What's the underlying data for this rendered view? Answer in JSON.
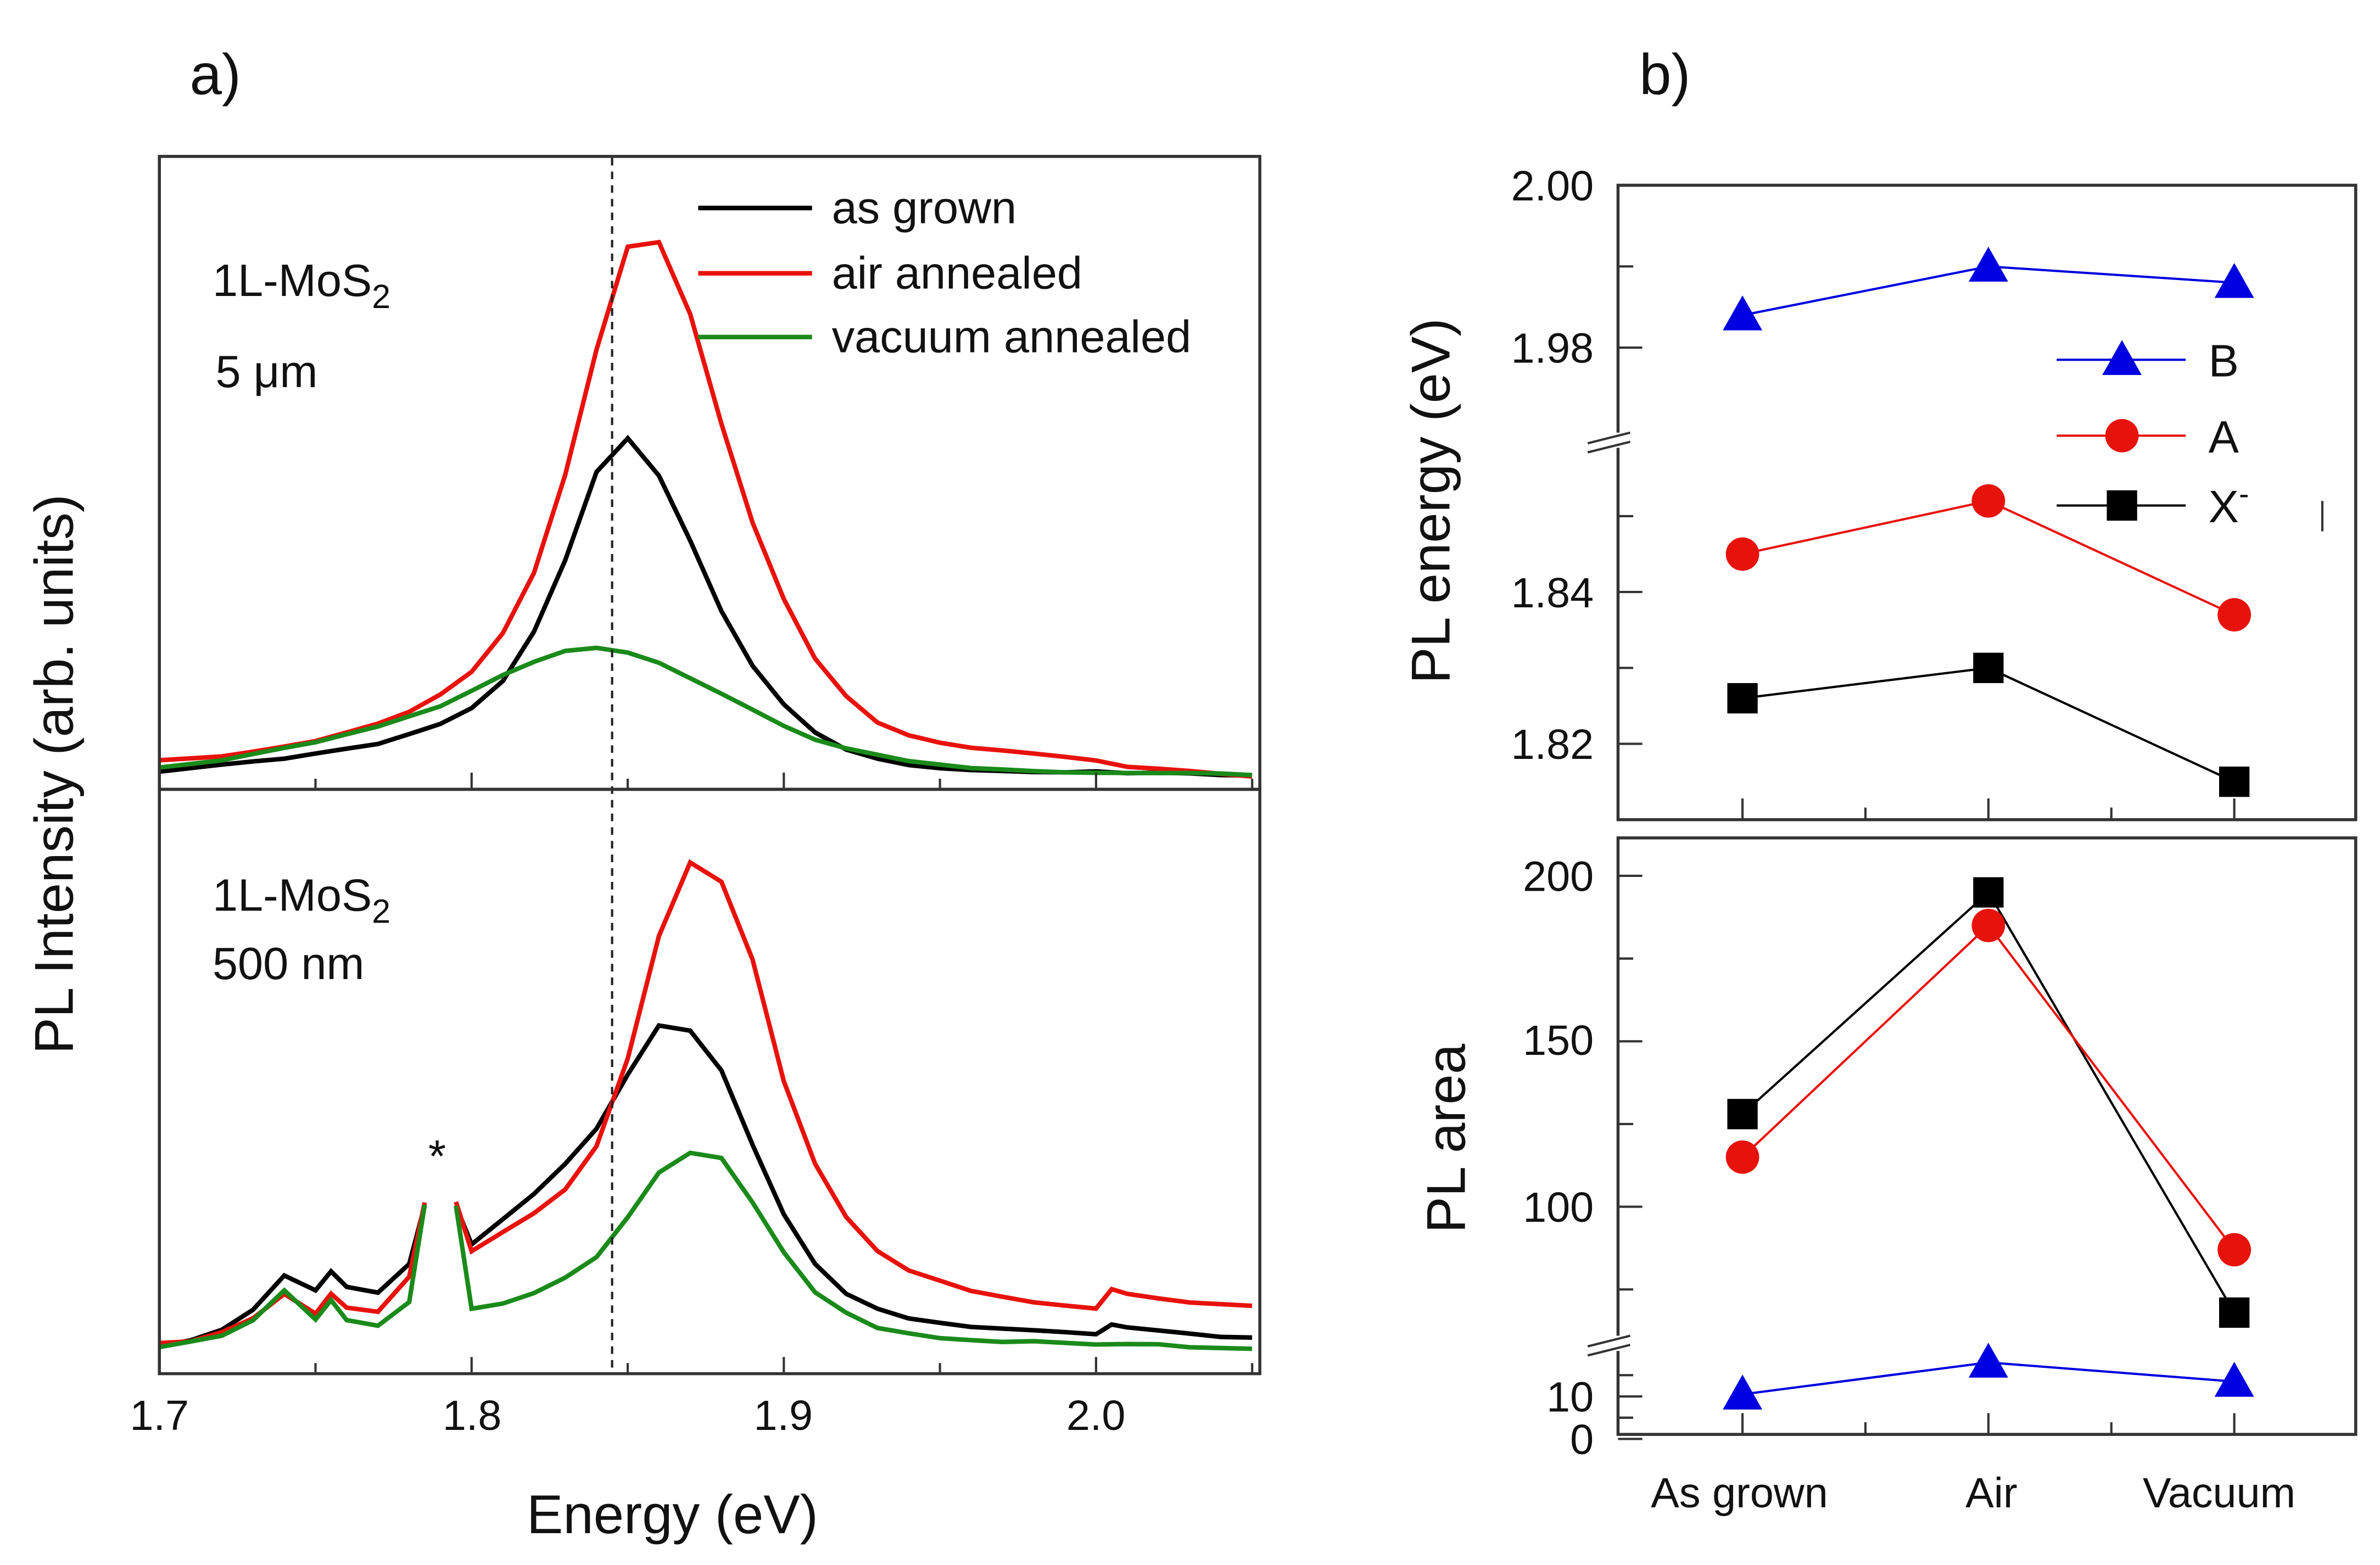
{
  "chart_data": [
    {
      "type": "line",
      "panel_label": "a)",
      "xlabel": "Energy (eV)",
      "ylabel": "PL Intensity (arb. units)",
      "xlim": [
        1.7,
        2.05
      ],
      "x_ticks": [
        "1.7",
        "1.8",
        "1.9",
        "2.0"
      ],
      "reference_line_energy": 1.845,
      "subplots": [
        {
          "sample_label": "1L-MoS",
          "sample_label_sub": "2",
          "size_label": "5 μm",
          "legend": "top-right",
          "x": [
            1.7,
            1.71,
            1.72,
            1.73,
            1.74,
            1.75,
            1.76,
            1.77,
            1.78,
            1.79,
            1.8,
            1.81,
            1.82,
            1.83,
            1.84,
            1.85,
            1.86,
            1.87,
            1.88,
            1.89,
            1.9,
            1.91,
            1.92,
            1.93,
            1.94,
            1.95,
            1.96,
            1.97,
            1.98,
            1.99,
            2.0,
            2.01,
            2.02,
            2.03,
            2.04,
            2.05
          ],
          "series": [
            {
              "name": "as grown",
              "color": "#000000",
              "values": [
                0.01,
                0.015,
                0.02,
                0.025,
                0.03,
                0.04,
                0.05,
                0.06,
                0.08,
                0.1,
                0.13,
                0.18,
                0.27,
                0.4,
                0.56,
                0.62,
                0.55,
                0.43,
                0.3,
                0.2,
                0.13,
                0.08,
                0.05,
                0.035,
                0.025,
                0.02,
                0.017,
                0.015,
                0.012,
                0.01,
                0.01,
                0.005,
                0.005,
                0.003,
                0,
                0
              ]
            },
            {
              "name": "air annealed",
              "color": "#e8120c",
              "values": [
                0.03,
                0.035,
                0.04,
                0.05,
                0.06,
                0.07,
                0.085,
                0.1,
                0.12,
                0.15,
                0.19,
                0.26,
                0.37,
                0.55,
                0.78,
                0.97,
                0.98,
                0.85,
                0.65,
                0.47,
                0.33,
                0.22,
                0.15,
                0.1,
                0.075,
                0.06,
                0.05,
                0.045,
                0.04,
                0.035,
                0.03,
                0.02,
                0.018,
                0.015,
                0.01,
                0.005
              ]
            },
            {
              "name": "vacuum annealed",
              "color": "#1a8a1a",
              "values": [
                0.02,
                0.025,
                0.03,
                0.04,
                0.05,
                0.06,
                0.075,
                0.09,
                0.11,
                0.13,
                0.16,
                0.19,
                0.215,
                0.235,
                0.24,
                0.23,
                0.21,
                0.18,
                0.15,
                0.12,
                0.09,
                0.065,
                0.05,
                0.04,
                0.03,
                0.025,
                0.02,
                0.018,
                0.015,
                0.012,
                0.01,
                0.008,
                0.006,
                0.005,
                0.003,
                0
              ]
            }
          ]
        },
        {
          "sample_label": "1L-MoS",
          "sample_label_sub": "2",
          "size_label": "500 nm",
          "annotation": "*",
          "annotation_energy": 1.79,
          "x": [
            1.7,
            1.71,
            1.72,
            1.73,
            1.74,
            1.75,
            1.755,
            1.76,
            1.77,
            1.78,
            1.785,
            1.79,
            1.795,
            1.8,
            1.81,
            1.82,
            1.83,
            1.84,
            1.85,
            1.86,
            1.87,
            1.88,
            1.89,
            1.9,
            1.91,
            1.92,
            1.93,
            1.94,
            1.95,
            1.96,
            1.97,
            1.98,
            1.99,
            2.0,
            2.005,
            2.01,
            2.02,
            2.03,
            2.04,
            2.05
          ],
          "series": [
            {
              "name": "as grown",
              "color": "#000000",
              "values": [
                0.01,
                0.02,
                0.04,
                0.08,
                0.15,
                0.12,
                0.16,
                0.13,
                0.12,
                0.18,
                0.3,
                null,
                0.3,
                0.22,
                0.27,
                0.32,
                0.38,
                0.45,
                0.56,
                0.66,
                0.65,
                0.57,
                0.42,
                0.28,
                0.18,
                0.12,
                0.09,
                0.07,
                0.06,
                0.05,
                0.045,
                0.04,
                0.035,
                0.03,
                0.05,
                0.045,
                0.04,
                0.035,
                0.03,
                0.03
              ]
            },
            {
              "name": "air annealed",
              "color": "#e8120c",
              "values": [
                0.015,
                0.02,
                0.04,
                0.07,
                0.12,
                0.08,
                0.12,
                0.09,
                0.08,
                0.15,
                0.3,
                null,
                0.3,
                0.2,
                0.24,
                0.28,
                0.33,
                0.42,
                0.6,
                0.85,
                1.0,
                0.96,
                0.8,
                0.55,
                0.38,
                0.27,
                0.2,
                0.16,
                0.14,
                0.12,
                0.11,
                0.1,
                0.095,
                0.09,
                0.13,
                0.12,
                0.11,
                0.1,
                0.095,
                0.09
              ]
            },
            {
              "name": "vacuum annealed",
              "color": "#1a8a1a",
              "values": [
                0.01,
                0.02,
                0.03,
                0.06,
                0.12,
                0.06,
                0.1,
                0.06,
                0.05,
                0.1,
                0.3,
                null,
                0.3,
                0.09,
                0.1,
                0.12,
                0.15,
                0.19,
                0.27,
                0.36,
                0.4,
                0.39,
                0.3,
                0.2,
                0.12,
                0.08,
                0.05,
                0.04,
                0.03,
                0.025,
                0.02,
                0.02,
                0.015,
                0.01,
                0.01,
                0.01,
                0.01,
                0.005,
                0.005,
                0.005
              ]
            }
          ]
        }
      ]
    },
    {
      "type": "line",
      "panel_label": "b)",
      "categories": [
        "As grown",
        "Air",
        "Vacuum"
      ],
      "legend": "right",
      "subplots": [
        {
          "ylabel": "PL energy (eV)",
          "axis_break": true,
          "y_ticks_upper": [
            "2.00",
            "1.98"
          ],
          "y_ticks_lower": [
            "1.84",
            "1.82"
          ],
          "series": [
            {
              "name": "B",
              "name_sup": "",
              "color": "#0000e0",
              "marker": "triangle",
              "values": [
                1.984,
                1.99,
                1.988
              ]
            },
            {
              "name": "A",
              "name_sup": "",
              "color": "#e8120c",
              "marker": "circle",
              "values": [
                1.845,
                1.852,
                1.837
              ]
            },
            {
              "name": "X",
              "name_sup": "-",
              "color": "#000000",
              "marker": "square",
              "values": [
                1.826,
                1.83,
                1.815
              ]
            }
          ]
        },
        {
          "ylabel": "PL area",
          "axis_break": true,
          "y_ticks_upper": [
            "200",
            "150",
            "100"
          ],
          "y_ticks_lower": [
            "10",
            "0"
          ],
          "series": [
            {
              "name": "X-",
              "color": "#000000",
              "marker": "square",
              "values": [
                128,
                195,
                68
              ]
            },
            {
              "name": "A",
              "color": "#e8120c",
              "marker": "circle",
              "values": [
                115,
                185,
                87
              ]
            },
            {
              "name": "B",
              "color": "#0000e0",
              "marker": "triangle",
              "values": [
                10.5,
                18,
                13.5
              ]
            }
          ]
        }
      ]
    }
  ]
}
